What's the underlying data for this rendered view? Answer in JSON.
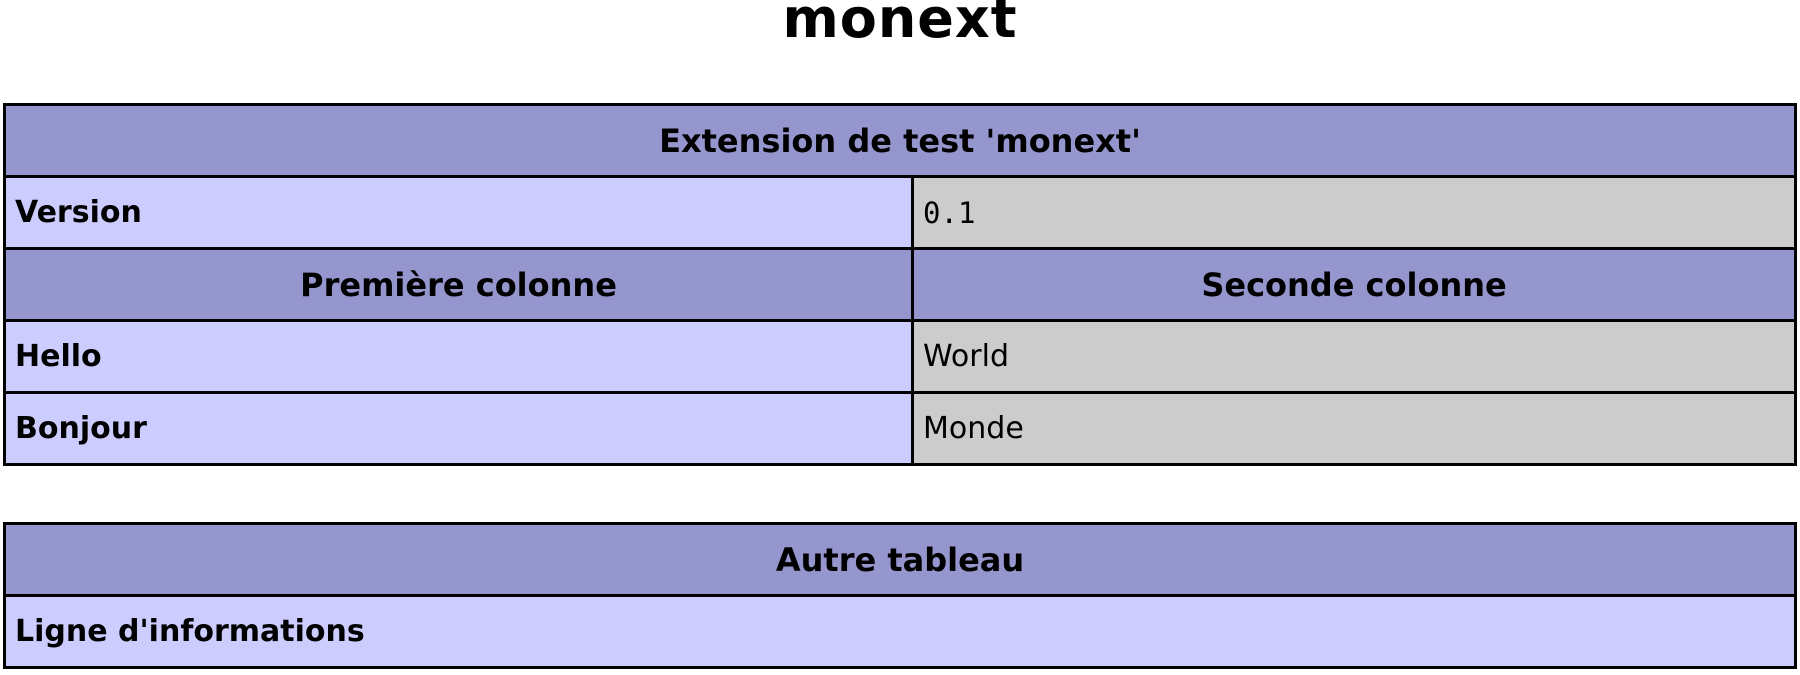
{
  "page": {
    "title": "monext"
  },
  "colors": {
    "header_bg": "#9696ce",
    "label_bg": "#ccccff",
    "value_bg": "#cccccc",
    "border": "#000000",
    "text": "#000000",
    "page_bg": "#ffffff"
  },
  "extension_table": {
    "title": "Extension de test 'monext'",
    "version": {
      "label": "Version",
      "value": "0.1"
    },
    "columns": [
      "Première colonne",
      "Seconde colonne"
    ],
    "rows": [
      {
        "label": "Hello",
        "value": "World"
      },
      {
        "label": "Bonjour",
        "value": "Monde"
      }
    ]
  },
  "other_table": {
    "title": "Autre tableau",
    "info_label": "Ligne d'informations"
  }
}
